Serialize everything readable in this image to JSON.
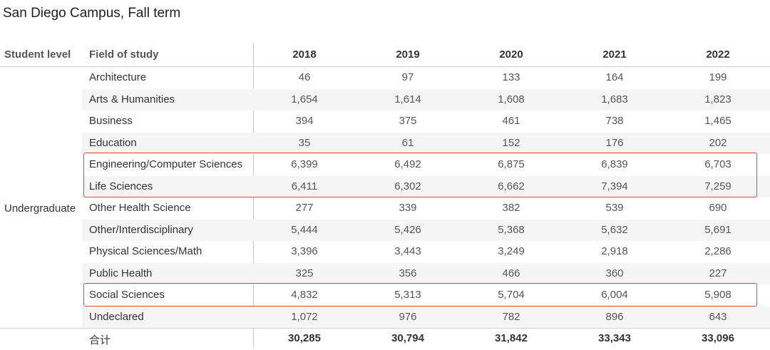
{
  "chart_data": {
    "type": "table",
    "title": "San Diego Campus, Fall term",
    "row_header_labels": [
      "Student level",
      "Field of study"
    ],
    "columns": [
      "2018",
      "2019",
      "2020",
      "2021",
      "2022"
    ],
    "student_level": "Undergraduate",
    "rows": [
      {
        "field": "Architecture",
        "values": [
          "46",
          "97",
          "133",
          "164",
          "199"
        ]
      },
      {
        "field": "Arts & Humanities",
        "values": [
          "1,654",
          "1,614",
          "1,608",
          "1,683",
          "1,823"
        ]
      },
      {
        "field": "Business",
        "values": [
          "394",
          "375",
          "461",
          "738",
          "1,465"
        ]
      },
      {
        "field": "Education",
        "values": [
          "35",
          "61",
          "152",
          "176",
          "202"
        ]
      },
      {
        "field": "Engineering/Computer Sciences",
        "values": [
          "6,399",
          "6,492",
          "6,875",
          "6,839",
          "6,703"
        ]
      },
      {
        "field": "Life Sciences",
        "values": [
          "6,411",
          "6,302",
          "6,662",
          "7,394",
          "7,259"
        ]
      },
      {
        "field": "Other Health Science",
        "values": [
          "277",
          "339",
          "382",
          "539",
          "690"
        ]
      },
      {
        "field": "Other/Interdisciplinary",
        "values": [
          "5,444",
          "5,426",
          "5,368",
          "5,632",
          "5,691"
        ]
      },
      {
        "field": "Physical Sciences/Math",
        "values": [
          "3,396",
          "3,443",
          "3,249",
          "2,918",
          "2,286"
        ]
      },
      {
        "field": "Public Health",
        "values": [
          "325",
          "356",
          "466",
          "360",
          "227"
        ]
      },
      {
        "field": "Social Sciences",
        "values": [
          "4,832",
          "5,313",
          "5,704",
          "6,004",
          "5,908"
        ]
      },
      {
        "field": "Undeclared",
        "values": [
          "1,072",
          "976",
          "782",
          "896",
          "643"
        ]
      }
    ],
    "total": {
      "label": "合计",
      "values": [
        "30,285",
        "30,794",
        "31,842",
        "33,343",
        "33,096"
      ]
    },
    "highlighted_rows": [
      "Engineering/Computer Sciences",
      "Life Sciences",
      "Social Sciences"
    ],
    "highlight_color": "#e0473f"
  }
}
